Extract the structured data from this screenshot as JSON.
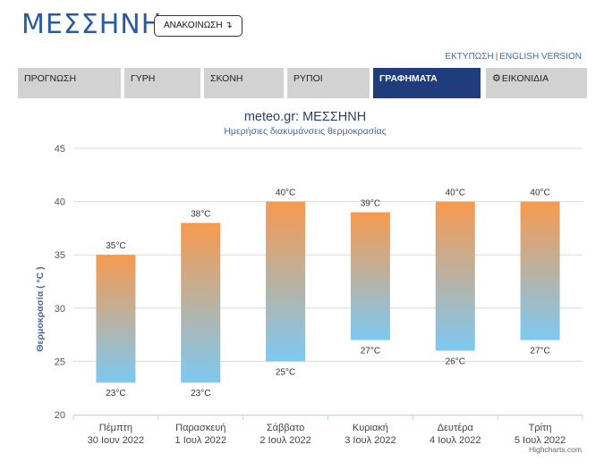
{
  "header": {
    "city": "ΜΕΣΣΗΝΗ",
    "announce_label": "ΑΝΑΚΟΙΝΩΣΗ ↴",
    "print_label": "ΕΚΤΥΠΩΣΗ",
    "separator": "|",
    "english_label": "ENGLISH VERSION"
  },
  "tabs": [
    {
      "label": "ΠΡΟΓΝΩΣΗ",
      "active": false
    },
    {
      "label": "ΓΥΡΗ",
      "active": false
    },
    {
      "label": "ΣΚΟΝΗ",
      "active": false
    },
    {
      "label": "ΡΥΠΟΙ",
      "active": false
    },
    {
      "label": "ΓΡΑΦΗΜΑΤΑ",
      "active": true
    },
    {
      "label": "ΕΙΚΟΝΙΔΙΑ",
      "active": false,
      "icon": "gear-icon"
    }
  ],
  "colors": {
    "accent": "#2b5aa3",
    "tab_active": "#1f3c7c",
    "tab_inactive": "#d2d2d2",
    "bar_top": "#f79a4f",
    "bar_bottom": "#7dc9f3"
  },
  "chart_data": {
    "type": "columnrange",
    "title": "meteo.gr: ΜΕΣΣΗΝΗ",
    "subtitle": "Ημερήσιες διακυμάνσεις θερμοκρασίας",
    "ylabel": "Θερμοκρασία ( °C )",
    "ylim": [
      20,
      45
    ],
    "yticks": [
      20,
      25,
      30,
      35,
      40,
      45
    ],
    "grid": true,
    "unit": "°C",
    "categories": [
      {
        "day": "Πέμπτη",
        "date": "30 Ιουν 2022"
      },
      {
        "day": "Παρασκευή",
        "date": "1 Ιουλ 2022"
      },
      {
        "day": "Σάββατο",
        "date": "2 Ιουλ 2022"
      },
      {
        "day": "Κυριακή",
        "date": "3 Ιουλ 2022"
      },
      {
        "day": "Δευτέρα",
        "date": "4 Ιουλ 2022"
      },
      {
        "day": "Τρίτη",
        "date": "5 Ιουλ 2022"
      }
    ],
    "low": [
      23,
      23,
      25,
      27,
      26,
      27
    ],
    "high": [
      35,
      38,
      40,
      39,
      40,
      40
    ],
    "credit": "Highcharts.com"
  }
}
